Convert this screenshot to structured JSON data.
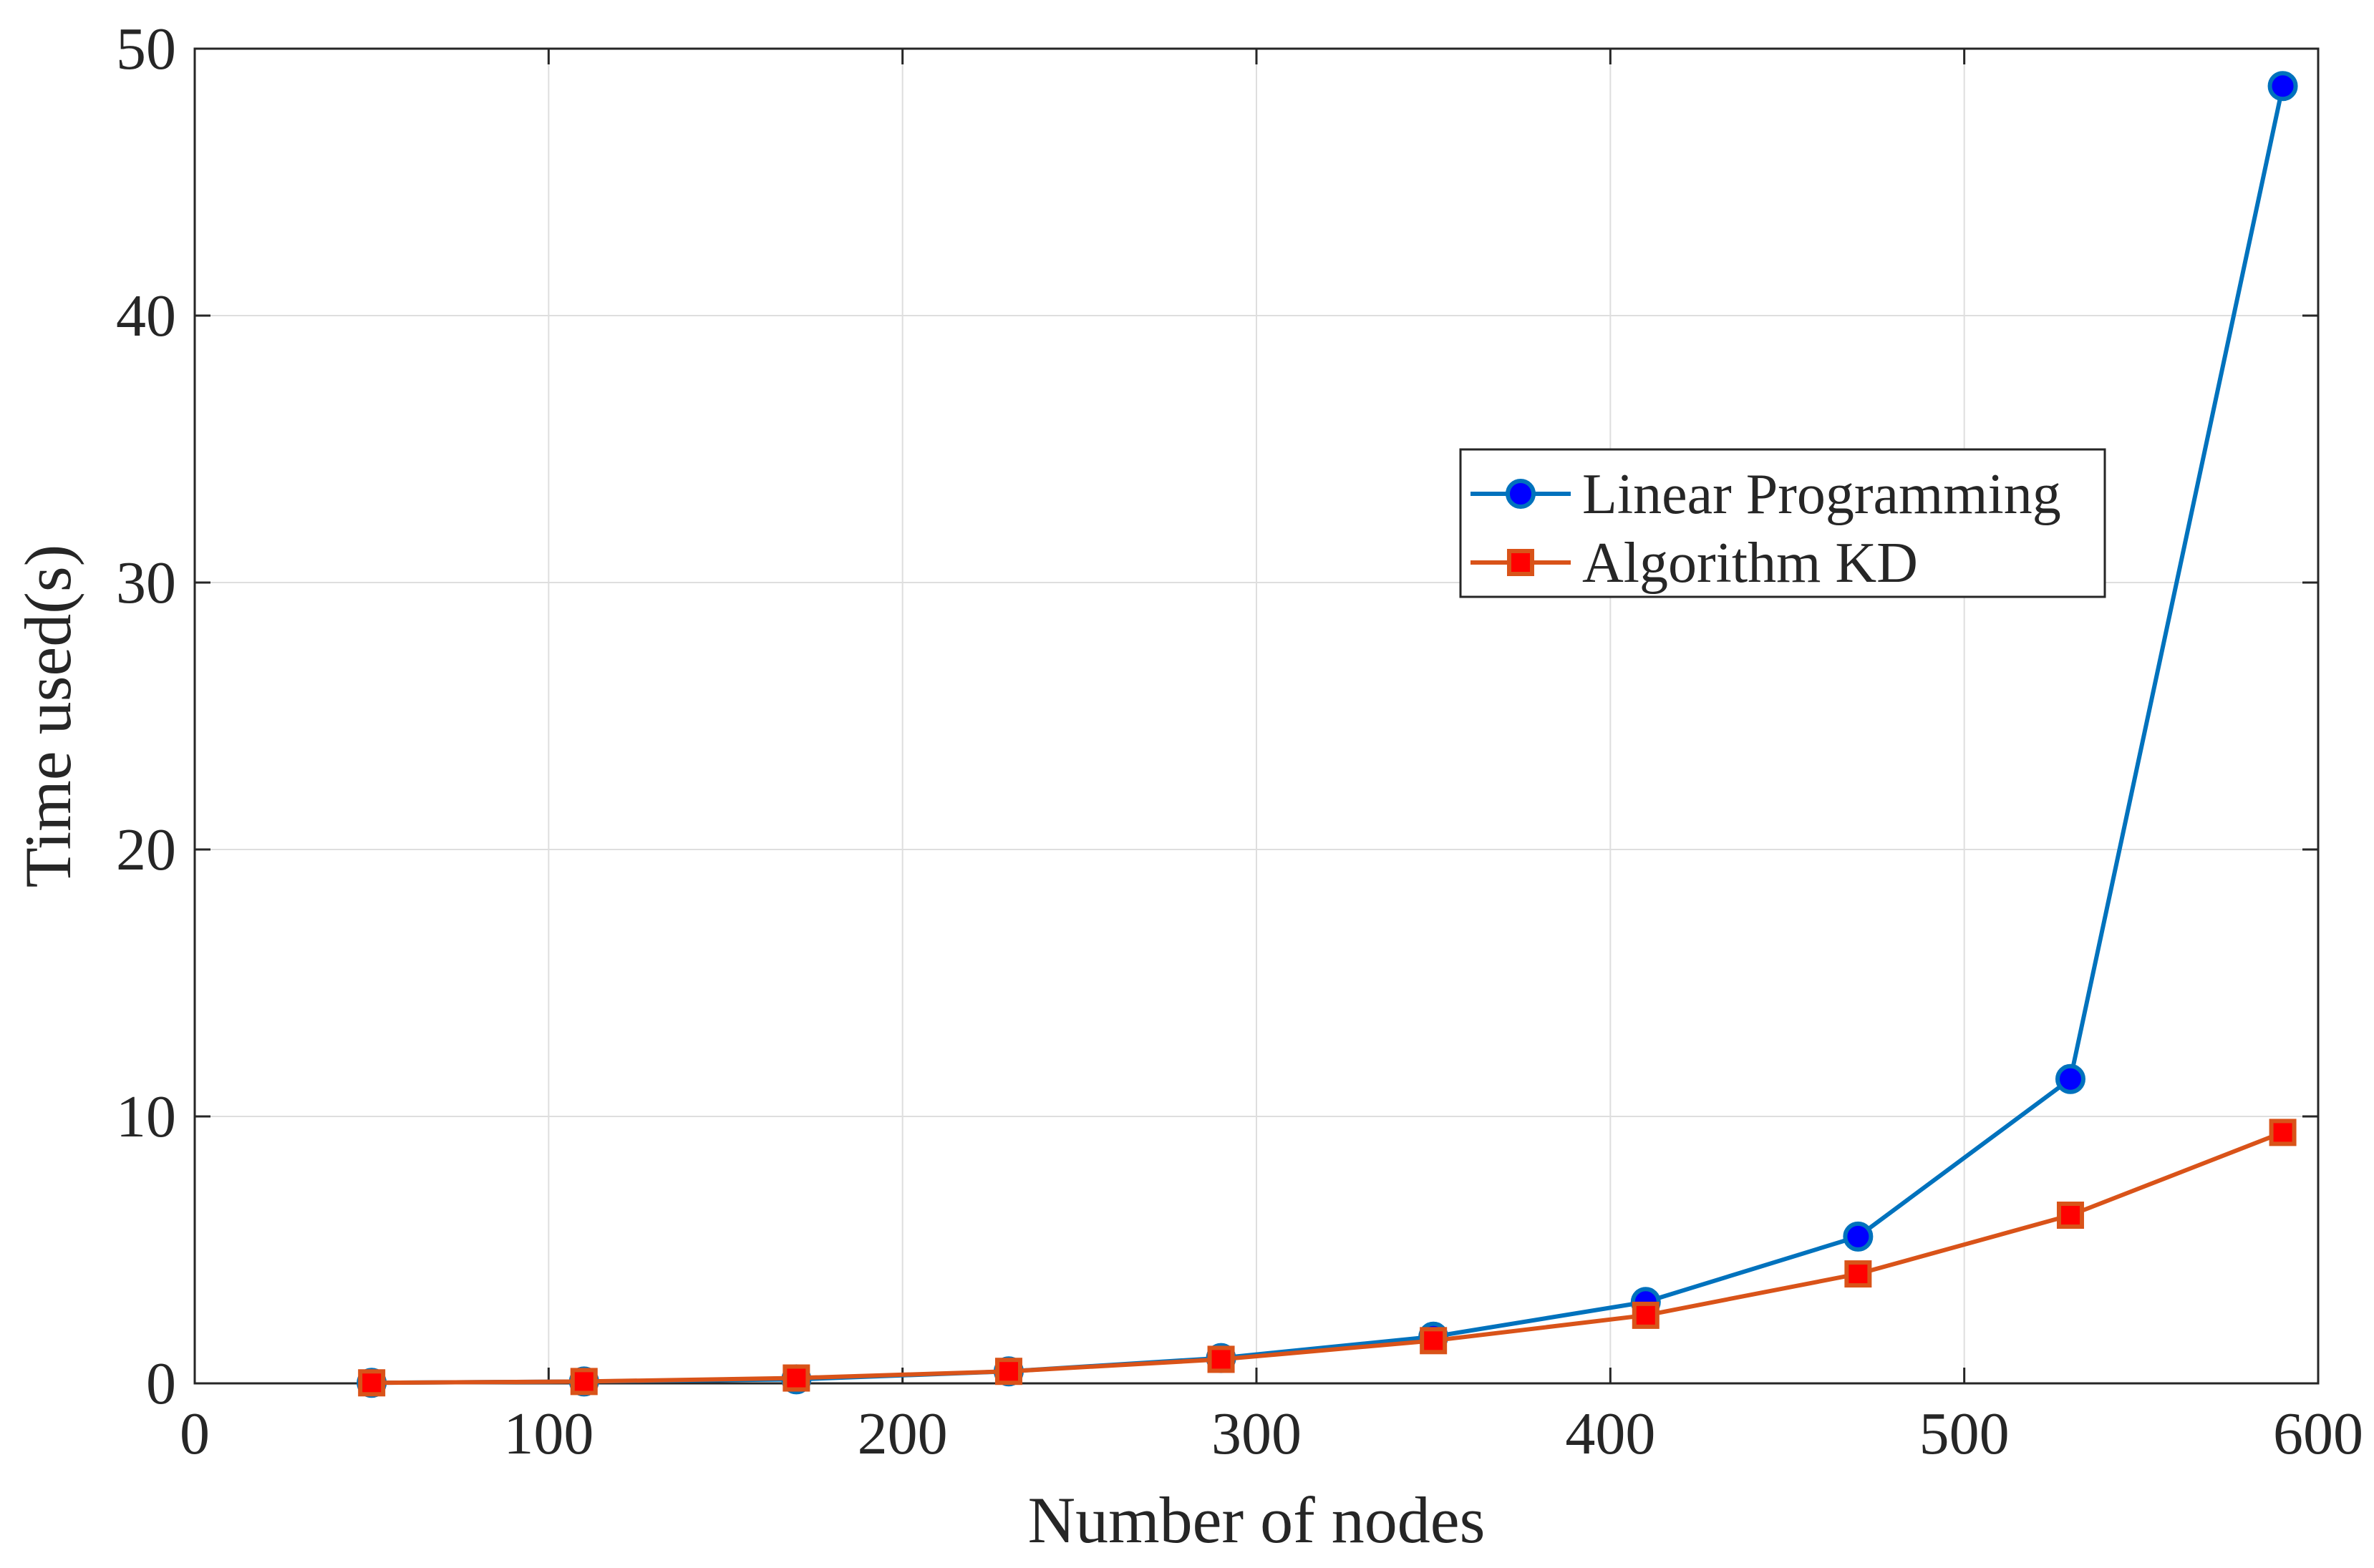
{
  "chart_data": {
    "type": "line",
    "title": "",
    "xlabel": "Number of nodes",
    "ylabel": "Time used(s)",
    "xlim": [
      0,
      600
    ],
    "ylim": [
      0,
      50
    ],
    "x_ticks": [
      0,
      100,
      200,
      300,
      400,
      500,
      600
    ],
    "y_ticks": [
      0,
      10,
      20,
      30,
      40,
      50
    ],
    "grid": true,
    "legend_position": "right-middle",
    "x": [
      50,
      110,
      170,
      230,
      290,
      350,
      410,
      470,
      530,
      590
    ],
    "series": [
      {
        "name": "Linear Programming",
        "marker": "circle",
        "line_color": "#0072BD",
        "marker_fill": "#0000FF",
        "values": [
          0.02,
          0.07,
          0.15,
          0.45,
          0.95,
          1.75,
          3.05,
          5.5,
          11.4,
          48.6
        ]
      },
      {
        "name": "Algorithm KD",
        "marker": "square",
        "line_color": "#D95319",
        "marker_fill": "#FF0000",
        "values": [
          0.02,
          0.07,
          0.2,
          0.45,
          0.9,
          1.6,
          2.55,
          4.1,
          6.3,
          9.4
        ]
      }
    ]
  }
}
